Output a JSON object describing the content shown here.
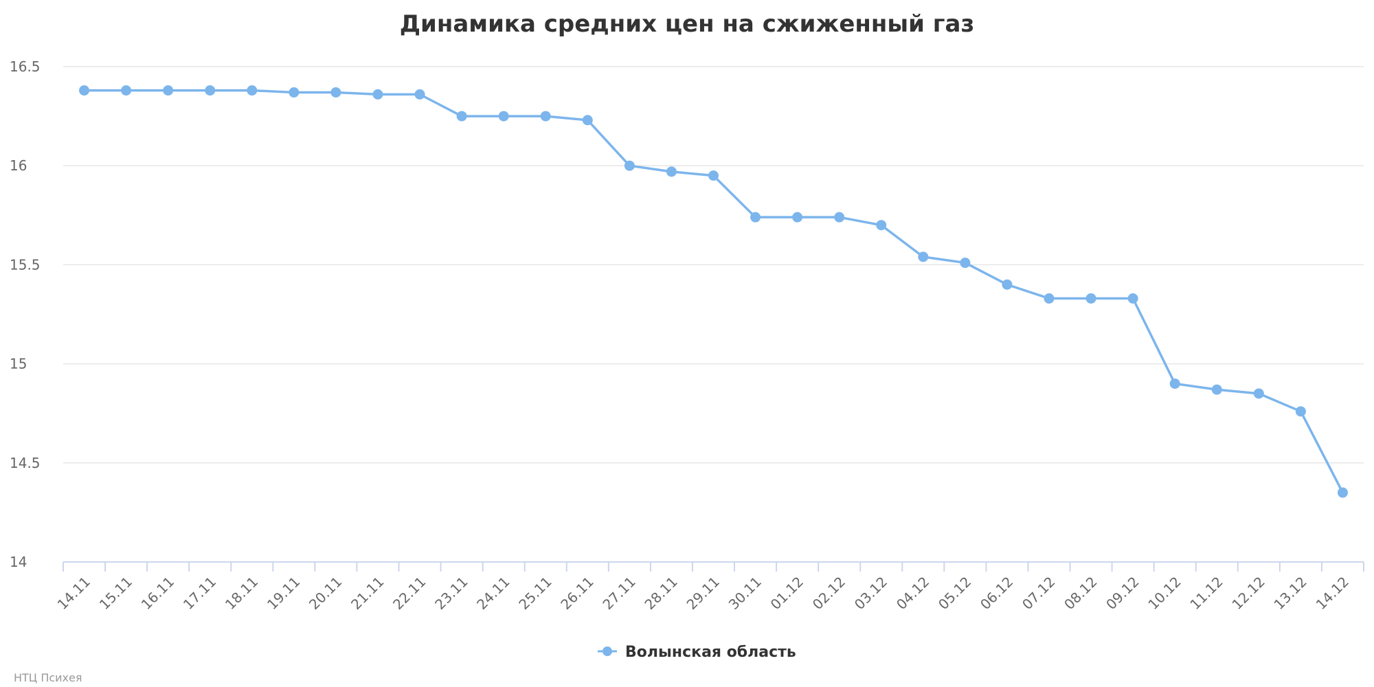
{
  "chart_data": {
    "type": "line",
    "title": "Динамика средних цен на сжиженный газ",
    "xlabel": "",
    "ylabel": "",
    "categories": [
      "14.11",
      "15.11",
      "16.11",
      "17.11",
      "18.11",
      "19.11",
      "20.11",
      "21.11",
      "22.11",
      "23.11",
      "24.11",
      "25.11",
      "26.11",
      "27.11",
      "28.11",
      "29.11",
      "30.11",
      "01.12",
      "02.12",
      "03.12",
      "04.12",
      "05.12",
      "06.12",
      "07.12",
      "08.12",
      "09.12",
      "10.12",
      "11.12",
      "12.12",
      "13.12",
      "14.12"
    ],
    "series": [
      {
        "name": "Волынская область",
        "color": "#7cb5ec",
        "values": [
          16.38,
          16.38,
          16.38,
          16.38,
          16.38,
          16.37,
          16.37,
          16.36,
          16.36,
          16.25,
          16.25,
          16.25,
          16.23,
          16.0,
          15.97,
          15.95,
          15.74,
          15.74,
          15.74,
          15.7,
          15.54,
          15.51,
          15.4,
          15.33,
          15.33,
          15.33,
          14.9,
          14.87,
          14.85,
          14.76,
          14.35
        ]
      }
    ],
    "ylim": [
      14,
      16.5
    ],
    "yticks": [
      "14",
      "14.5",
      "15",
      "15.5",
      "16",
      "16.5"
    ],
    "grid": true,
    "legend_position": "bottom-center"
  },
  "credits": "НТЦ Психея"
}
